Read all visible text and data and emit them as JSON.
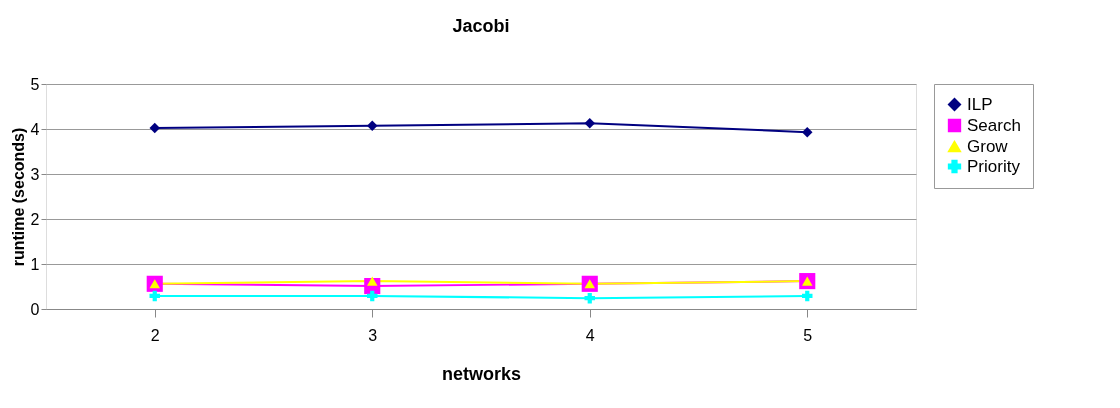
{
  "chart_data": {
    "type": "line",
    "title": "Jacobi",
    "xlabel": "networks",
    "ylabel": "runtime (seconds)",
    "categories": [
      "2",
      "3",
      "4",
      "5"
    ],
    "ylim": [
      0,
      5
    ],
    "yticks": [
      0,
      1,
      2,
      3,
      4,
      5
    ],
    "grid": "y",
    "legend": "right",
    "series": [
      {
        "name": "ILP",
        "color": "#000080",
        "marker": "diamond",
        "values": [
          4.02,
          4.07,
          4.13,
          3.93
        ]
      },
      {
        "name": "Search",
        "color": "#ff00ff",
        "marker": "square",
        "values": [
          0.56,
          0.51,
          0.56,
          0.62
        ]
      },
      {
        "name": "Grow",
        "color": "#ffff00",
        "marker": "triangle",
        "values": [
          0.56,
          0.62,
          0.56,
          0.62
        ]
      },
      {
        "name": "Priority",
        "color": "#00ffff",
        "marker": "cross",
        "values": [
          0.29,
          0.29,
          0.24,
          0.29
        ]
      }
    ]
  }
}
